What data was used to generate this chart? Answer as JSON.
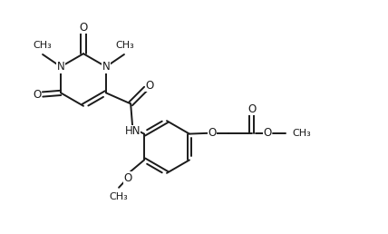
{
  "bg_color": "#ffffff",
  "line_color": "#1a1a1a",
  "line_width": 1.4,
  "font_size": 8.5,
  "fig_width": 4.28,
  "fig_height": 2.58,
  "dpi": 100,
  "xlim": [
    0,
    10.7
  ],
  "ylim": [
    0,
    6.45
  ]
}
